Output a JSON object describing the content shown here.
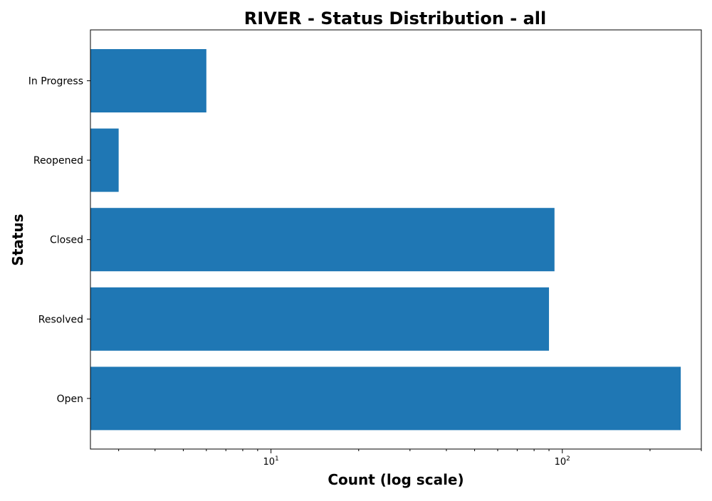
{
  "chart_data": {
    "type": "bar",
    "orientation": "horizontal",
    "title": "RIVER - Status Distribution - all",
    "xlabel": "Count (log scale)",
    "ylabel": "Status",
    "xscale": "log",
    "xlim": [
      2.4,
      300
    ],
    "categories": [
      "Open",
      "Resolved",
      "Closed",
      "Reopened",
      "In Progress"
    ],
    "values": [
      255,
      90,
      94,
      3,
      6
    ],
    "x_major_ticks": [
      {
        "base": "10",
        "exp": "1",
        "value": 10
      },
      {
        "base": "10",
        "exp": "2",
        "value": 100
      }
    ],
    "x_minor_ticks": [
      3,
      4,
      5,
      6,
      7,
      8,
      9,
      20,
      30,
      40,
      50,
      60,
      70,
      80,
      90,
      200,
      300
    ],
    "grid": false,
    "bar_color": "#1f77b4"
  }
}
